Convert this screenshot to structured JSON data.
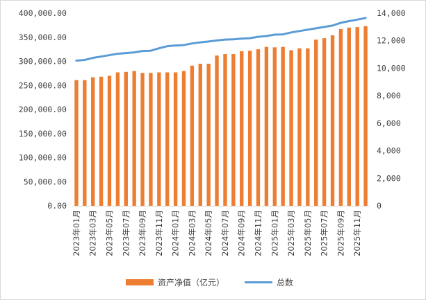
{
  "chart_data": {
    "type": "bar",
    "title": "",
    "x": [
      "2023年01月",
      "2023年02月",
      "2023年03月",
      "2023年04月",
      "2023年05月",
      "2023年06月",
      "2023年07月",
      "2023年08月",
      "2023年09月",
      "2023年10月",
      "2023年11月",
      "2023年12月",
      "2024年01月",
      "2024年02月",
      "2024年03月",
      "2024年04月",
      "2024年05月",
      "2024年06月",
      "2024年07月",
      "2024年08月",
      "2024年09月",
      "2024年10月",
      "2024年11月",
      "2024年12月",
      "2025年01月",
      "2025年02月",
      "2025年03月",
      "2025年04月",
      "2025年05月",
      "2025年06月",
      "2025年07月",
      "2025年08月",
      "2025年09月",
      "2025年10月",
      "2025年11月",
      "2025年12月"
    ],
    "x_tick_labels": [
      "2023年01月",
      "2023年03月",
      "2023年05月",
      "2023年07月",
      "2023年09月",
      "2023年11月",
      "2024年01月",
      "2024年03月",
      "2024年05月",
      "2024年07月",
      "2024年09月",
      "2024年11月",
      "2025年01月",
      "2025年03月",
      "2025年05月",
      "2025年07月",
      "2025年09月",
      "2025年11月"
    ],
    "y_left": {
      "ylim": [
        0,
        400000
      ],
      "ticks": [
        "0.00",
        "50,000.00",
        "100,000.00",
        "150,000.00",
        "200,000.00",
        "250,000.00",
        "300,000.00",
        "350,000.00",
        "400,000.00"
      ]
    },
    "y_right": {
      "ylim": [
        0,
        14000
      ],
      "ticks": [
        "0",
        "2,000",
        "4,000",
        "6,000",
        "8,000",
        "10,000",
        "12,000",
        "14,000"
      ]
    },
    "series": [
      {
        "name": "资产净值（亿元）",
        "type": "bar",
        "axis": "left",
        "color": "#ED7D31",
        "values": [
          261000,
          261000,
          267000,
          268000,
          270000,
          277000,
          278000,
          280000,
          276000,
          276000,
          277000,
          277000,
          277000,
          280000,
          291000,
          295000,
          295000,
          312000,
          315000,
          315000,
          321000,
          322000,
          325000,
          330000,
          329000,
          330000,
          323000,
          327000,
          327000,
          345000,
          348000,
          354000,
          367000,
          370000,
          371000,
          373000
        ]
      },
      {
        "name": "总数",
        "type": "line",
        "axis": "right",
        "color": "#5B9BD5",
        "values": [
          10550,
          10600,
          10750,
          10850,
          10950,
          11050,
          11100,
          11150,
          11250,
          11270,
          11450,
          11600,
          11650,
          11680,
          11800,
          11880,
          11940,
          12020,
          12080,
          12100,
          12150,
          12180,
          12280,
          12340,
          12440,
          12460,
          12600,
          12700,
          12800,
          12900,
          13000,
          13100,
          13300,
          13420,
          13530,
          13650
        ]
      }
    ],
    "legend": {
      "position": "bottom",
      "entries": [
        "资产净值（亿元）",
        "总数"
      ]
    },
    "grid": false
  }
}
